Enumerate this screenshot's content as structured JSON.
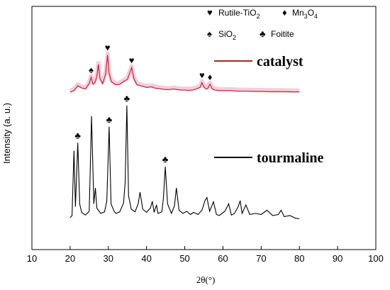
{
  "chart_data": {
    "type": "line",
    "xlabel": "2θ(°)",
    "ylabel": "Intensity (a. u.)",
    "xlim": [
      10,
      100
    ],
    "x_ticks": [
      10,
      20,
      30,
      40,
      50,
      60,
      70,
      80,
      90,
      100
    ],
    "y_ticks_shown": false,
    "grid": false,
    "series": [
      {
        "name": "catalyst",
        "color": "#b22222",
        "x": [
          20,
          21,
          22,
          23,
          24,
          25,
          25.5,
          26,
          26.5,
          27,
          27.4,
          27.8,
          28.5,
          29.3,
          29.8,
          30.2,
          30.8,
          31.5,
          32,
          33,
          34,
          35,
          35.5,
          36.1,
          36.7,
          37.5,
          38.5,
          40,
          41.4,
          42,
          43,
          44,
          45,
          46,
          47,
          48,
          49,
          50,
          51,
          52,
          53,
          54,
          54.5,
          55,
          55.6,
          56,
          56.6,
          57.2,
          58,
          59,
          60,
          62,
          64,
          66,
          68,
          70,
          72,
          74,
          76,
          78,
          80
        ],
        "values": [
          0,
          0.3,
          1.2,
          0.8,
          0.6,
          1.6,
          2.8,
          1.5,
          1.8,
          3.0,
          5.2,
          2.6,
          1.6,
          3.4,
          7.0,
          3.5,
          2.0,
          1.6,
          1.4,
          1.5,
          2.0,
          2.4,
          3.4,
          4.6,
          2.5,
          1.4,
          1.2,
          0.9,
          1.0,
          0.8,
          0.7,
          0.6,
          0.5,
          0.5,
          0.6,
          0.5,
          0.4,
          0.4,
          0.35,
          0.4,
          0.6,
          0.9,
          1.8,
          1.0,
          0.6,
          0.7,
          1.5,
          0.6,
          0.4,
          0.3,
          0.3,
          0.3,
          0.2,
          0.2,
          0.15,
          0.15,
          0.1,
          0.1,
          0.1,
          0.05,
          0.05
        ]
      },
      {
        "name": "tourmaline",
        "color": "#000000",
        "x": [
          20,
          20.5,
          21.0,
          21.4,
          22.0,
          22.5,
          23,
          24,
          25,
          25.6,
          26.2,
          26.6,
          27,
          28,
          29,
          29.6,
          30.2,
          30.7,
          31.5,
          32,
          33,
          34,
          34.4,
          34.85,
          35.3,
          36,
          37,
          37.8,
          38.3,
          39,
          40,
          41,
          41.5,
          42,
          42.6,
          43,
          44,
          44.4,
          44.9,
          45.5,
          46.5,
          47.3,
          47.8,
          48.5,
          49.5,
          50.5,
          51.5,
          52.3,
          53.5,
          54.5,
          55.3,
          55.8,
          56.5,
          57.5,
          58.3,
          59,
          60.5,
          61.5,
          62.2,
          63,
          64,
          64.5,
          65,
          66,
          67,
          68.5,
          70,
          71.5,
          73,
          74.5,
          75.2,
          76,
          77.5,
          79,
          80
        ],
        "values": [
          0.4,
          0.8,
          13.0,
          2.5,
          14.5,
          3.0,
          1.4,
          0.9,
          1.6,
          19.5,
          3.0,
          6.0,
          2.2,
          1.2,
          1.5,
          3.5,
          17.5,
          3.0,
          1.6,
          1.2,
          1.5,
          3.2,
          7.0,
          21.5,
          4.5,
          2.0,
          1.5,
          3.0,
          5.2,
          2.0,
          1.4,
          2.2,
          3.5,
          1.4,
          2.8,
          1.2,
          1.5,
          4.0,
          10.0,
          3.0,
          1.2,
          2.6,
          6.0,
          1.8,
          1.2,
          1.6,
          1.0,
          1.4,
          1.0,
          1.8,
          3.6,
          4.2,
          1.6,
          3.4,
          1.0,
          0.8,
          1.6,
          3.0,
          0.9,
          1.2,
          2.5,
          3.6,
          1.2,
          2.8,
          1.0,
          1.2,
          1.0,
          1.8,
          0.8,
          1.0,
          1.8,
          0.6,
          0.8,
          0.3,
          0.2
        ]
      }
    ],
    "peak_markers": [
      {
        "symbol": "♥",
        "series": 0,
        "x": 29.8
      },
      {
        "symbol": "♥",
        "series": 0,
        "x": 36.1
      },
      {
        "symbol": "♥",
        "series": 0,
        "x": 54.5
      },
      {
        "symbol": "♠",
        "series": 0,
        "x": 25.5
      },
      {
        "symbol": "♦",
        "series": 0,
        "x": 56.6
      },
      {
        "symbol": "♣",
        "series": 1,
        "x": 22.0
      },
      {
        "symbol": "♣",
        "series": 1,
        "x": 30.2
      },
      {
        "symbol": "♣",
        "series": 1,
        "x": 34.85
      },
      {
        "symbol": "♣",
        "series": 1,
        "x": 44.9
      }
    ],
    "phase_legend": [
      {
        "symbol": "♥",
        "label": "Rutile-TiO",
        "sub": "2",
        "tail": ""
      },
      {
        "symbol": "♦",
        "label": "Mn",
        "sub": "3",
        "mid": "O",
        "sub2": "4"
      },
      {
        "symbol": "♠",
        "label": "SiO",
        "sub": "2",
        "tail": ""
      },
      {
        "symbol": "♣",
        "label": "Foitite",
        "sub": "",
        "tail": ""
      }
    ],
    "series_labels": [
      "catalyst",
      "tourmaline"
    ]
  }
}
